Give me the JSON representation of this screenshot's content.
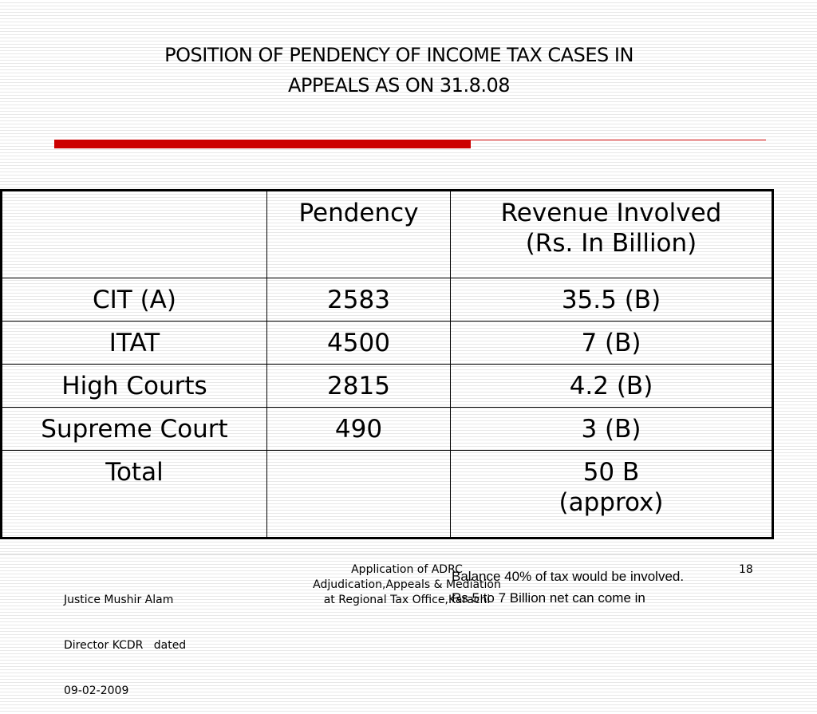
{
  "slide": {
    "title_line1": "POSITION OF PENDENCY OF INCOME TAX CASES IN",
    "title_line2": "APPEALS AS ON 31.8.08",
    "accent_color": "#cc0000"
  },
  "table": {
    "header": {
      "blank": "",
      "pendency": "Pendency",
      "revenue_line1": "Revenue Involved",
      "revenue_line2": "(Rs. In Billion)"
    },
    "rows": [
      {
        "forum": "CIT (A)",
        "pendency": "2583",
        "revenue": "35.5 (B)"
      },
      {
        "forum": "ITAT",
        "pendency": "4500",
        "revenue": "7 (B)"
      },
      {
        "forum": "High Courts",
        "pendency": "2815",
        "revenue": "4.2 (B)"
      },
      {
        "forum": "Supreme Court",
        "pendency": "490",
        "revenue": "3 (B)"
      }
    ],
    "total": {
      "label": "Total",
      "pendency": "",
      "revenue_line1": "50 B",
      "revenue_line2": "(approx)"
    }
  },
  "footer": {
    "author_line1": "Justice Mushir Alam",
    "author_line2": "Director KCDR   dated",
    "author_line3": "09-02-2009",
    "center_line1": "Application of ADRC",
    "center_line2": "Adjudication,Appeals & Mediation",
    "center_line3": "at Regional Tax Office,Karachi",
    "page_number": "18"
  },
  "overlay_note": {
    "line1": "Balance 40% of tax would be involved.",
    "line2": "Rs 5 to 7 Billion net can come  in"
  }
}
